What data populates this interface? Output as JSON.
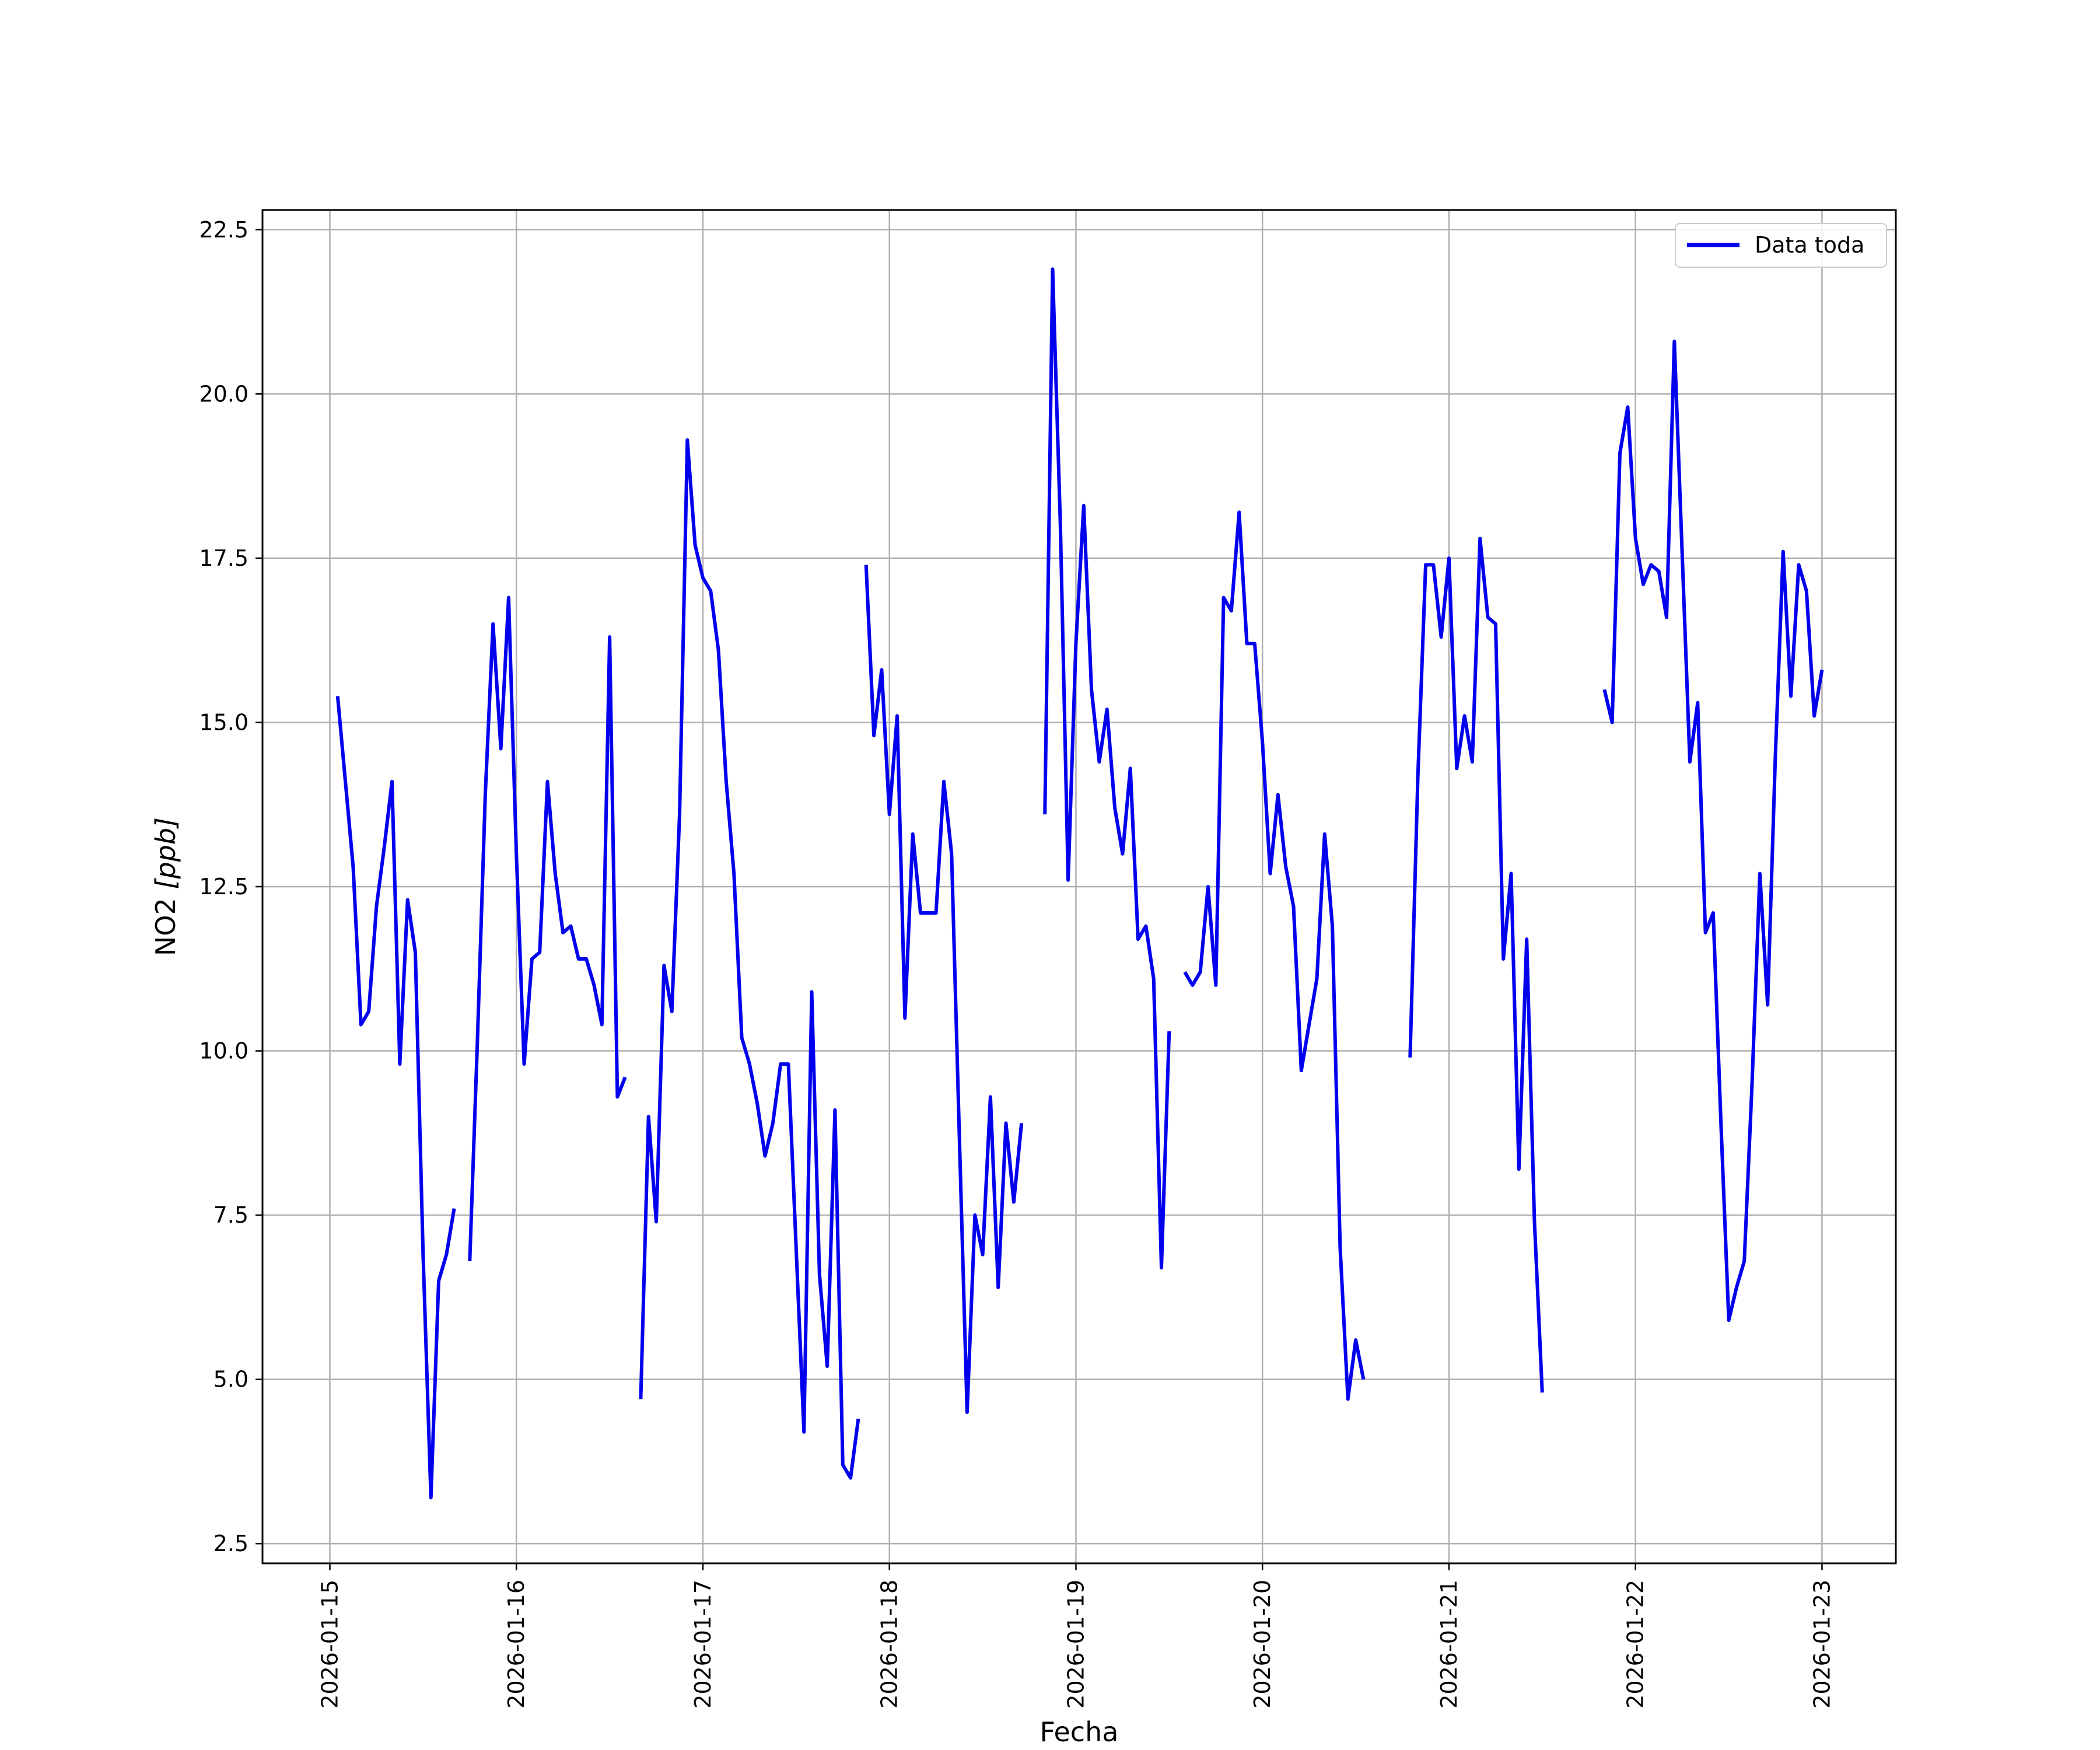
{
  "chart_data": {
    "type": "line",
    "xlabel": "Fecha",
    "ylabel_main": "NO2 ",
    "ylabel_unit": "[ppb]",
    "ylim": [
      2.2,
      22.8
    ],
    "xlim": [
      "2026-01-14 15:20",
      "2026-01-23 09:30"
    ],
    "x_ticks": [
      "2026-01-15",
      "2026-01-16",
      "2026-01-17",
      "2026-01-18",
      "2026-01-19",
      "2026-01-20",
      "2026-01-21",
      "2026-01-22",
      "2026-01-23"
    ],
    "y_ticks": [
      "2.5",
      "5.0",
      "7.5",
      "10.0",
      "12.5",
      "15.0",
      "17.5",
      "20.0",
      "22.5"
    ],
    "grid": true,
    "legend_position": "top-right",
    "colors": {
      "series": "#0000ee",
      "grid": "#b0b0b0",
      "frame": "#000000"
    },
    "series": [
      {
        "name": "Data toda",
        "segments": [
          [
            [
              "2026-01-15 01:00",
              15.4
            ],
            [
              "2026-01-15 03:00",
              12.8
            ],
            [
              "2026-01-15 04:00",
              10.4
            ],
            [
              "2026-01-15 05:00",
              10.6
            ],
            [
              "2026-01-15 06:00",
              12.2
            ],
            [
              "2026-01-15 07:00",
              13.1
            ],
            [
              "2026-01-15 08:00",
              14.1
            ],
            [
              "2026-01-15 09:00",
              9.8
            ],
            [
              "2026-01-15 10:00",
              12.3
            ],
            [
              "2026-01-15 11:00",
              11.5
            ],
            [
              "2026-01-15 12:00",
              6.9
            ],
            [
              "2026-01-15 13:00",
              3.2
            ],
            [
              "2026-01-15 14:00",
              6.5
            ],
            [
              "2026-01-15 15:00",
              6.9
            ],
            [
              "2026-01-15 16:00",
              7.6
            ]
          ],
          [
            [
              "2026-01-15 18:00",
              6.8
            ],
            [
              "2026-01-15 19:00",
              10.2
            ],
            [
              "2026-01-15 20:00",
              13.9
            ],
            [
              "2026-01-15 21:00",
              16.5
            ],
            [
              "2026-01-15 22:00",
              14.6
            ],
            [
              "2026-01-15 23:00",
              16.9
            ],
            [
              "2026-01-16 00:00",
              13.0
            ],
            [
              "2026-01-16 01:00",
              9.8
            ],
            [
              "2026-01-16 02:00",
              11.4
            ],
            [
              "2026-01-16 03:00",
              11.5
            ],
            [
              "2026-01-16 04:00",
              14.1
            ],
            [
              "2026-01-16 05:00",
              12.7
            ],
            [
              "2026-01-16 06:00",
              11.8
            ],
            [
              "2026-01-16 07:00",
              11.9
            ],
            [
              "2026-01-16 08:00",
              11.4
            ],
            [
              "2026-01-16 09:00",
              11.4
            ],
            [
              "2026-01-16 10:00",
              11.0
            ],
            [
              "2026-01-16 11:00",
              10.4
            ],
            [
              "2026-01-16 12:00",
              16.3
            ],
            [
              "2026-01-16 13:00",
              9.3
            ],
            [
              "2026-01-16 14:00",
              9.6
            ]
          ],
          [
            [
              "2026-01-16 16:00",
              4.7
            ],
            [
              "2026-01-16 17:00",
              9.0
            ],
            [
              "2026-01-16 18:00",
              7.4
            ],
            [
              "2026-01-16 19:00",
              11.3
            ],
            [
              "2026-01-16 20:00",
              10.6
            ],
            [
              "2026-01-16 21:00",
              13.6
            ],
            [
              "2026-01-16 22:00",
              19.3
            ],
            [
              "2026-01-16 23:00",
              17.7
            ],
            [
              "2026-01-17 00:00",
              17.2
            ],
            [
              "2026-01-17 01:00",
              17.0
            ],
            [
              "2026-01-17 02:00",
              16.1
            ],
            [
              "2026-01-17 03:00",
              14.1
            ],
            [
              "2026-01-17 04:00",
              12.7
            ],
            [
              "2026-01-17 05:00",
              10.2
            ],
            [
              "2026-01-17 06:00",
              9.8
            ],
            [
              "2026-01-17 07:00",
              9.2
            ],
            [
              "2026-01-17 08:00",
              8.4
            ],
            [
              "2026-01-17 09:00",
              8.9
            ],
            [
              "2026-01-17 10:00",
              9.8
            ],
            [
              "2026-01-17 11:00",
              9.8
            ],
            [
              "2026-01-17 12:00",
              7.0
            ],
            [
              "2026-01-17 13:00",
              4.2
            ],
            [
              "2026-01-17 14:00",
              10.9
            ],
            [
              "2026-01-17 15:00",
              6.6
            ],
            [
              "2026-01-17 16:00",
              5.2
            ],
            [
              "2026-01-17 17:00",
              9.1
            ],
            [
              "2026-01-17 18:00",
              3.7
            ],
            [
              "2026-01-17 19:00",
              3.5
            ],
            [
              "2026-01-17 20:00",
              4.4
            ]
          ],
          [
            [
              "2026-01-17 21:00",
              17.4
            ],
            [
              "2026-01-17 22:00",
              14.8
            ],
            [
              "2026-01-17 23:00",
              15.8
            ],
            [
              "2026-01-18 00:00",
              13.6
            ],
            [
              "2026-01-18 01:00",
              15.1
            ],
            [
              "2026-01-18 02:00",
              10.5
            ],
            [
              "2026-01-18 03:00",
              13.3
            ],
            [
              "2026-01-18 04:00",
              12.1
            ],
            [
              "2026-01-18 05:00",
              12.1
            ],
            [
              "2026-01-18 06:00",
              12.1
            ],
            [
              "2026-01-18 07:00",
              14.1
            ],
            [
              "2026-01-18 08:00",
              13.0
            ],
            [
              "2026-01-18 09:00",
              8.7
            ],
            [
              "2026-01-18 10:00",
              4.5
            ],
            [
              "2026-01-18 11:00",
              7.5
            ],
            [
              "2026-01-18 12:00",
              6.9
            ],
            [
              "2026-01-18 13:00",
              9.3
            ],
            [
              "2026-01-18 14:00",
              6.4
            ],
            [
              "2026-01-18 15:00",
              8.9
            ],
            [
              "2026-01-18 16:00",
              7.7
            ],
            [
              "2026-01-18 17:00",
              8.9
            ]
          ],
          [
            [
              "2026-01-18 20:00",
              13.6
            ],
            [
              "2026-01-18 21:00",
              21.9
            ],
            [
              "2026-01-18 22:00",
              18.0
            ],
            [
              "2026-01-18 23:00",
              12.6
            ],
            [
              "2026-01-19 00:00",
              16.2
            ],
            [
              "2026-01-19 01:00",
              18.3
            ],
            [
              "2026-01-19 02:00",
              15.5
            ],
            [
              "2026-01-19 03:00",
              14.4
            ],
            [
              "2026-01-19 04:00",
              15.2
            ],
            [
              "2026-01-19 05:00",
              13.7
            ],
            [
              "2026-01-19 06:00",
              13.0
            ],
            [
              "2026-01-19 07:00",
              14.3
            ],
            [
              "2026-01-19 08:00",
              11.7
            ],
            [
              "2026-01-19 09:00",
              11.9
            ],
            [
              "2026-01-19 10:00",
              11.1
            ],
            [
              "2026-01-19 11:00",
              6.7
            ],
            [
              "2026-01-19 12:00",
              10.3
            ]
          ],
          [
            [
              "2026-01-19 14:00",
              11.2
            ],
            [
              "2026-01-19 15:00",
              11.0
            ],
            [
              "2026-01-19 16:00",
              11.2
            ],
            [
              "2026-01-19 17:00",
              12.5
            ],
            [
              "2026-01-19 18:00",
              11.0
            ],
            [
              "2026-01-19 19:00",
              16.9
            ],
            [
              "2026-01-19 20:00",
              16.7
            ],
            [
              "2026-01-19 21:00",
              18.2
            ],
            [
              "2026-01-19 22:00",
              16.2
            ],
            [
              "2026-01-19 23:00",
              16.2
            ],
            [
              "2026-01-20 00:00",
              14.7
            ],
            [
              "2026-01-20 01:00",
              12.7
            ],
            [
              "2026-01-20 02:00",
              13.9
            ],
            [
              "2026-01-20 03:00",
              12.8
            ],
            [
              "2026-01-20 04:00",
              12.2
            ],
            [
              "2026-01-20 05:00",
              9.7
            ],
            [
              "2026-01-20 06:00",
              10.4
            ],
            [
              "2026-01-20 07:00",
              11.1
            ],
            [
              "2026-01-20 08:00",
              13.3
            ],
            [
              "2026-01-20 09:00",
              11.9
            ],
            [
              "2026-01-20 10:00",
              7.0
            ],
            [
              "2026-01-20 11:00",
              4.7
            ],
            [
              "2026-01-20 12:00",
              5.6
            ],
            [
              "2026-01-20 13:00",
              5.0
            ]
          ],
          [
            [
              "2026-01-20 19:00",
              9.9
            ],
            [
              "2026-01-20 20:00",
              14.2
            ],
            [
              "2026-01-20 21:00",
              17.4
            ],
            [
              "2026-01-20 22:00",
              17.4
            ],
            [
              "2026-01-20 23:00",
              16.3
            ],
            [
              "2026-01-21 00:00",
              17.5
            ],
            [
              "2026-01-21 01:00",
              14.3
            ],
            [
              "2026-01-21 02:00",
              15.1
            ],
            [
              "2026-01-21 03:00",
              14.4
            ],
            [
              "2026-01-21 04:00",
              17.8
            ],
            [
              "2026-01-21 05:00",
              16.6
            ],
            [
              "2026-01-21 06:00",
              16.5
            ],
            [
              "2026-01-21 07:00",
              11.4
            ],
            [
              "2026-01-21 08:00",
              12.7
            ],
            [
              "2026-01-21 09:00",
              8.2
            ],
            [
              "2026-01-21 10:00",
              11.7
            ],
            [
              "2026-01-21 11:00",
              7.4
            ],
            [
              "2026-01-21 12:00",
              4.8
            ]
          ],
          [
            [
              "2026-01-21 20:00",
              15.5
            ],
            [
              "2026-01-21 21:00",
              15.0
            ],
            [
              "2026-01-21 22:00",
              19.1
            ],
            [
              "2026-01-21 23:00",
              19.8
            ],
            [
              "2026-01-22 00:00",
              17.8
            ],
            [
              "2026-01-22 01:00",
              17.1
            ],
            [
              "2026-01-22 02:00",
              17.4
            ],
            [
              "2026-01-22 03:00",
              17.3
            ],
            [
              "2026-01-22 04:00",
              16.6
            ],
            [
              "2026-01-22 05:00",
              20.8
            ],
            [
              "2026-01-22 06:00",
              17.6
            ],
            [
              "2026-01-22 07:00",
              14.4
            ],
            [
              "2026-01-22 08:00",
              15.3
            ],
            [
              "2026-01-22 09:00",
              11.8
            ],
            [
              "2026-01-22 10:00",
              12.1
            ],
            [
              "2026-01-22 11:00",
              8.9
            ],
            [
              "2026-01-22 12:00",
              5.9
            ],
            [
              "2026-01-22 13:00",
              6.4
            ],
            [
              "2026-01-22 14:00",
              6.8
            ],
            [
              "2026-01-22 15:00",
              9.5
            ],
            [
              "2026-01-22 16:00",
              12.7
            ],
            [
              "2026-01-22 17:00",
              10.7
            ],
            [
              "2026-01-22 18:00",
              14.5
            ],
            [
              "2026-01-22 19:00",
              17.6
            ],
            [
              "2026-01-22 20:00",
              15.4
            ],
            [
              "2026-01-22 21:00",
              17.4
            ],
            [
              "2026-01-22 22:00",
              17.0
            ],
            [
              "2026-01-22 23:00",
              15.1
            ],
            [
              "2026-01-23 00:00",
              15.8
            ]
          ]
        ]
      }
    ]
  }
}
